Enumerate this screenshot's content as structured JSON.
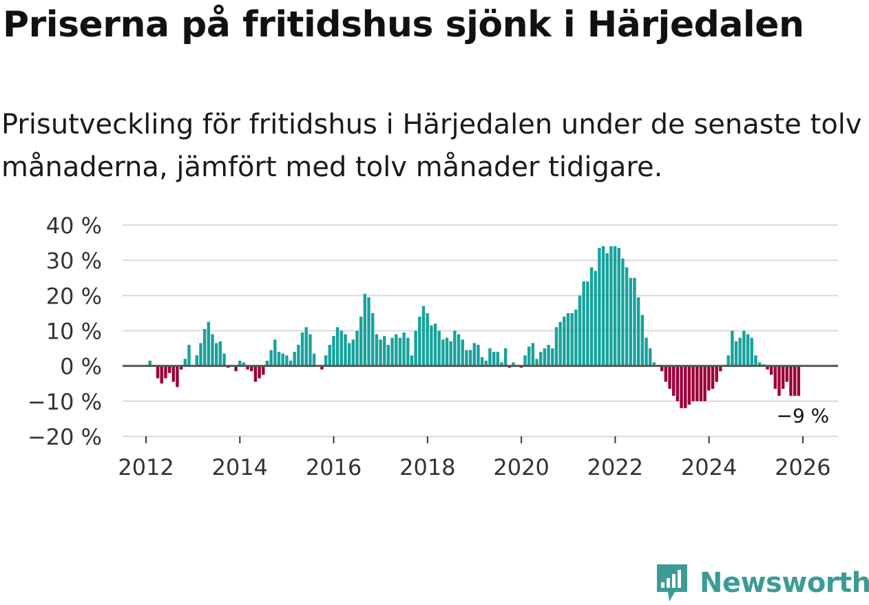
{
  "title": "Priserna på fritidshus sjönk i Härjedalen",
  "subtitle": "Prisutveckling för fritidshus i Härjedalen under de senaste tolv månaderna, jämfört med tolv månader tidigare.",
  "brand": "Newsworthy",
  "colors": {
    "positive": "#17a29c",
    "negative": "#9b0038",
    "grid": "#d9d9d9",
    "zero": "#555555",
    "brand": "#3c9b95"
  },
  "chart_data": {
    "type": "bar",
    "title": "Priserna på fritidshus sjönk i Härjedalen",
    "xlabel": "",
    "ylabel": "",
    "ylim": [
      -20,
      40
    ],
    "xlim": [
      2011.5,
      2026.75
    ],
    "y_ticks": [
      40,
      30,
      20,
      10,
      0,
      -10,
      -20
    ],
    "y_tick_labels": [
      "40 %",
      "30 %",
      "20 %",
      "10 %",
      "0 %",
      "−10 %",
      "−20 %"
    ],
    "x_ticks": [
      2012,
      2014,
      2016,
      2018,
      2020,
      2022,
      2024,
      2026
    ],
    "x_tick_labels": [
      "2012",
      "2014",
      "2016",
      "2018",
      "2020",
      "2022",
      "2024",
      "2026"
    ],
    "x_start": 2012.0,
    "step": 0.0833,
    "grid": true,
    "annotation": {
      "text": "−9 %",
      "x": 2026.0,
      "y": -9
    },
    "series": [
      {
        "name": "Prisutveckling",
        "values": [
          null,
          1.5,
          0,
          -3.5,
          -5,
          -3.5,
          -2,
          -4.5,
          -6,
          -1,
          2,
          6,
          0,
          3,
          6.5,
          10.5,
          12.5,
          9,
          6.5,
          7,
          3.5,
          -0.5,
          0,
          -1.5,
          1.5,
          1,
          -1,
          -1.5,
          -4.5,
          -3.5,
          -2.5,
          1.5,
          4.5,
          7.5,
          4,
          3.5,
          3,
          1.5,
          4,
          6,
          9.5,
          11,
          9,
          3.5,
          0,
          -1,
          3,
          6,
          8.5,
          11,
          10,
          9,
          6.5,
          7.5,
          10,
          14,
          20.5,
          19.5,
          15,
          9,
          7.5,
          8.5,
          6,
          8,
          9,
          8,
          9.5,
          8,
          3,
          10,
          14,
          17,
          15,
          11.5,
          12,
          10,
          7.5,
          8,
          7,
          10,
          9,
          7.5,
          4.5,
          4.5,
          6.5,
          6,
          2.5,
          1.5,
          5,
          4,
          4,
          1,
          5,
          -0.5,
          1,
          0,
          -0.5,
          3,
          5.5,
          6.5,
          2,
          4,
          5,
          6,
          5,
          11,
          12.5,
          14,
          15,
          15,
          16,
          20,
          24,
          24,
          28,
          27,
          33.5,
          34,
          32,
          34,
          34,
          33.5,
          30.5,
          28,
          25,
          25,
          19.5,
          14.5,
          8,
          5,
          1,
          0,
          -1.5,
          -4.5,
          -6.5,
          -8.5,
          -10,
          -12,
          -12,
          -11,
          -10,
          -10,
          -10,
          -10,
          -7,
          -6.5,
          -4.5,
          -1.5,
          0,
          3,
          10,
          7,
          8,
          10,
          9,
          8,
          3,
          1,
          0.5,
          -1,
          -2.5,
          -6.5,
          -8.5,
          -6.5,
          -4.5,
          -8.5,
          -8.5,
          -8.5
        ]
      }
    ]
  }
}
